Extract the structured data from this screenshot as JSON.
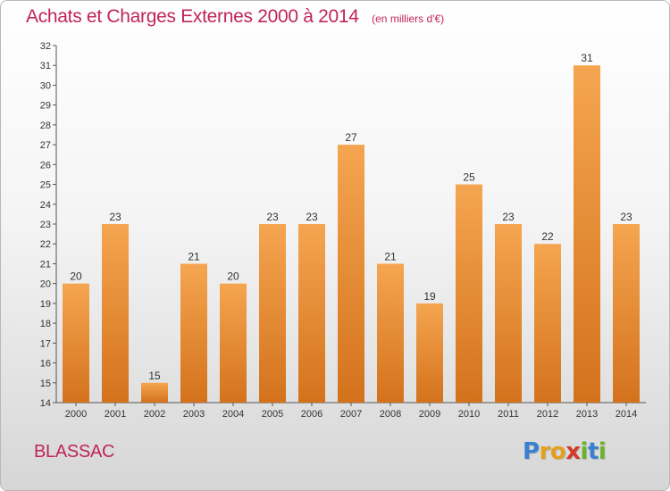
{
  "chart_data": {
    "type": "bar",
    "title": "Achats et Charges Externes 2000 à 2014",
    "subtitle": "(en milliers d'€)",
    "categories": [
      "2000",
      "2001",
      "2002",
      "2003",
      "2004",
      "2005",
      "2006",
      "2007",
      "2008",
      "2009",
      "2010",
      "2011",
      "2012",
      "2013",
      "2014"
    ],
    "values": [
      20,
      23,
      15,
      21,
      20,
      23,
      23,
      27,
      21,
      19,
      25,
      23,
      22,
      31,
      23
    ],
    "ylim": [
      14,
      32
    ],
    "yticks": [
      14,
      15,
      16,
      17,
      18,
      19,
      20,
      21,
      22,
      23,
      24,
      25,
      26,
      27,
      28,
      29,
      30,
      31,
      32
    ],
    "xlabel": "",
    "ylabel": "",
    "grid": false,
    "legend": "none",
    "bar_color_top": "#f5a550",
    "bar_color_bottom": "#d4721c"
  },
  "commune": "BLASSAC",
  "logo": {
    "letters": [
      "P",
      "r",
      "o",
      "x",
      "i",
      "t",
      "i"
    ],
    "colors": [
      "#3a7fd0",
      "#e2a020",
      "#e2a020",
      "#d23a2a",
      "#6ab42a",
      "#3a7fd0",
      "#6ab42a"
    ]
  }
}
